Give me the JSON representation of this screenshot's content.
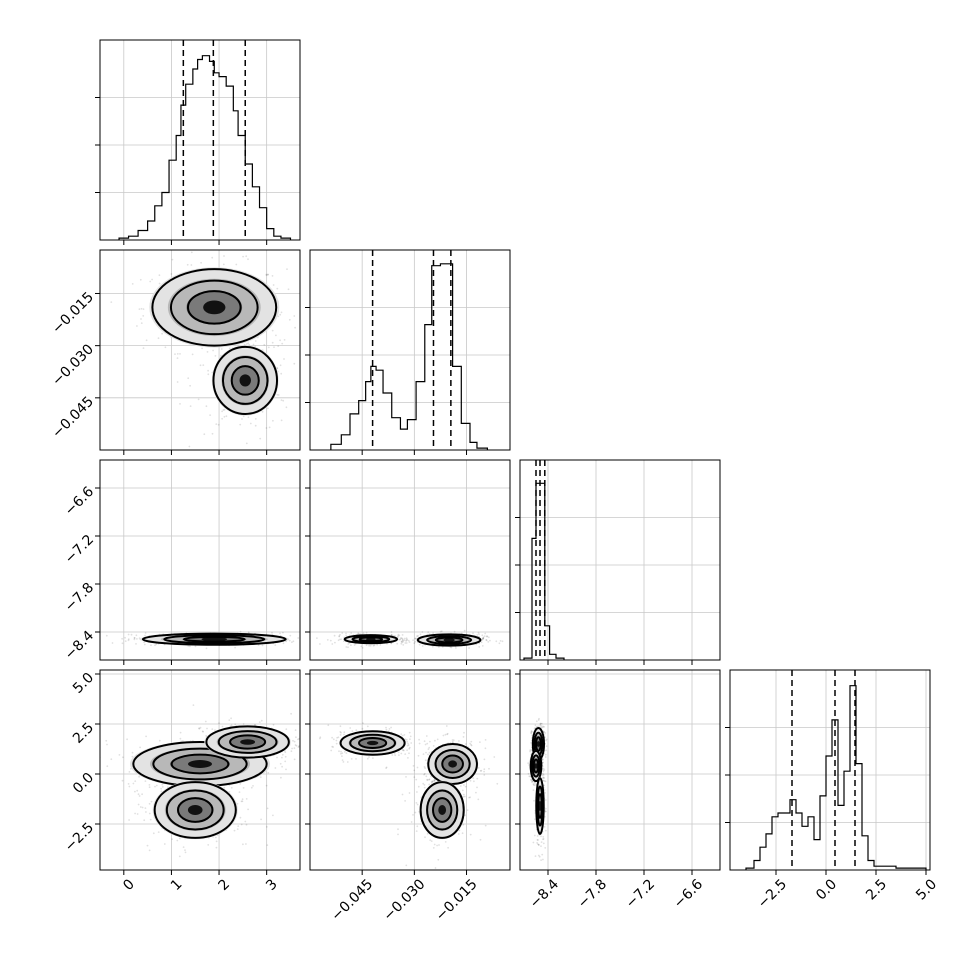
{
  "chart_data": {
    "type": "corner",
    "parameters": [
      {
        "range": [
          -0.5,
          3.7
        ],
        "ticks": [
          0,
          1,
          2,
          3
        ],
        "tick_labels": [
          "0",
          "1",
          "2",
          "3"
        ]
      },
      {
        "range": [
          -0.06,
          -0.0025
        ],
        "ticks": [
          -0.045,
          -0.03,
          -0.015
        ],
        "tick_labels": [
          "−0.045",
          "−0.030",
          "−0.015"
        ]
      },
      {
        "range": [
          -8.75,
          -6.25
        ],
        "ticks": [
          -8.4,
          -7.8,
          -7.2,
          -6.6
        ],
        "tick_labels": [
          "−8.4",
          "−7.8",
          "−7.2",
          "−6.6"
        ]
      },
      {
        "range": [
          -4.8,
          5.2
        ],
        "ticks": [
          -2.5,
          0.0,
          2.5,
          5.0
        ],
        "tick_labels": [
          "−2.5",
          "0.0",
          "2.5",
          "5.0"
        ]
      }
    ],
    "histograms": [
      {
        "param": 0,
        "max": 1.0,
        "quantiles": [
          1.25,
          1.88,
          2.55
        ],
        "bin_edges": [
          -0.1,
          0.1,
          0.3,
          0.5,
          0.65,
          0.8,
          0.95,
          1.1,
          1.2,
          1.3,
          1.45,
          1.55,
          1.65,
          1.8,
          1.9,
          2.0,
          2.15,
          2.3,
          2.4,
          2.55,
          2.7,
          2.85,
          3.0,
          3.15,
          3.3,
          3.5
        ],
        "counts": [
          0.01,
          0.02,
          0.05,
          0.1,
          0.18,
          0.25,
          0.42,
          0.55,
          0.71,
          0.82,
          0.9,
          0.95,
          0.97,
          0.94,
          0.88,
          0.86,
          0.81,
          0.68,
          0.55,
          0.4,
          0.28,
          0.17,
          0.06,
          0.02,
          0.01
        ]
      },
      {
        "param": 1,
        "max": 1.0,
        "quantiles": [
          -0.042,
          -0.0245,
          -0.0195
        ],
        "bin_edges": [
          -0.054,
          -0.051,
          -0.0485,
          -0.046,
          -0.044,
          -0.0425,
          -0.041,
          -0.039,
          -0.0365,
          -0.034,
          -0.032,
          -0.0295,
          -0.027,
          -0.025,
          -0.0225,
          -0.019,
          -0.0165,
          -0.014,
          -0.012,
          -0.009
        ],
        "counts": [
          0.03,
          0.08,
          0.19,
          0.26,
          0.36,
          0.44,
          0.42,
          0.3,
          0.17,
          0.11,
          0.16,
          0.36,
          0.66,
          0.97,
          0.98,
          0.44,
          0.14,
          0.04,
          0.01
        ]
      },
      {
        "param": 2,
        "max": 1.0,
        "quantiles": [
          -8.55,
          -8.5,
          -8.44
        ],
        "bin_edges": [
          -8.7,
          -8.6,
          -8.55,
          -8.5,
          -8.44,
          -8.38,
          -8.3,
          -8.2
        ],
        "counts": [
          0.01,
          0.64,
          0.93,
          0.93,
          0.18,
          0.03,
          0.01
        ]
      },
      {
        "param": 3,
        "max": 1.0,
        "quantiles": [
          -1.7,
          0.45,
          1.45
        ],
        "bin_edges": [
          -4.0,
          -3.6,
          -3.3,
          -3.0,
          -2.7,
          -2.4,
          -2.1,
          -1.8,
          -1.5,
          -1.2,
          -0.9,
          -0.6,
          -0.3,
          0.0,
          0.3,
          0.6,
          0.9,
          1.2,
          1.5,
          1.8,
          2.1,
          2.4,
          3.5,
          5.0
        ],
        "counts": [
          0.01,
          0.05,
          0.12,
          0.19,
          0.28,
          0.3,
          0.3,
          0.37,
          0.3,
          0.23,
          0.28,
          0.16,
          0.39,
          0.6,
          0.79,
          0.34,
          0.52,
          0.97,
          0.56,
          0.18,
          0.05,
          0.02,
          0.01
        ]
      }
    ],
    "pairs": [
      {
        "x_param": 0,
        "y_param": 1,
        "modes": [
          {
            "cx": 1.9,
            "cy": -0.019,
            "sx": 0.65,
            "sy": 0.0055,
            "weight": 1.0
          },
          {
            "cx": 2.55,
            "cy": -0.04,
            "sx": 0.45,
            "sy": 0.0065,
            "weight": 0.55
          }
        ]
      },
      {
        "x_param": 0,
        "y_param": 2,
        "modes": [
          {
            "cx": 1.9,
            "cy": -8.49,
            "sx": 0.75,
            "sy": 0.035,
            "weight": 1.0
          }
        ]
      },
      {
        "x_param": 1,
        "y_param": 2,
        "modes": [
          {
            "cx": -0.0425,
            "cy": -8.49,
            "sx": 0.0045,
            "sy": 0.03,
            "weight": 0.7
          },
          {
            "cx": -0.02,
            "cy": -8.5,
            "sx": 0.0045,
            "sy": 0.035,
            "weight": 1.0
          }
        ]
      },
      {
        "x_param": 0,
        "y_param": 3,
        "modes": [
          {
            "cx": 1.6,
            "cy": 0.5,
            "sx": 0.7,
            "sy": 0.55,
            "weight": 1.0
          },
          {
            "cx": 2.6,
            "cy": 1.6,
            "sx": 0.5,
            "sy": 0.45,
            "weight": 0.75
          },
          {
            "cx": 1.5,
            "cy": -1.8,
            "sx": 0.55,
            "sy": 0.9,
            "weight": 0.6
          }
        ]
      },
      {
        "x_param": 1,
        "y_param": 3,
        "modes": [
          {
            "cx": -0.042,
            "cy": 1.55,
            "sx": 0.0055,
            "sy": 0.35,
            "weight": 0.7
          },
          {
            "cx": -0.019,
            "cy": 0.5,
            "sx": 0.0035,
            "sy": 0.5,
            "weight": 1.0
          },
          {
            "cx": -0.022,
            "cy": -1.8,
            "sx": 0.004,
            "sy": 0.9,
            "weight": 0.6
          }
        ]
      },
      {
        "x_param": 2,
        "y_param": 3,
        "modes": [
          {
            "cx": -8.52,
            "cy": 1.5,
            "sx": 0.035,
            "sy": 0.4,
            "weight": 1.0
          },
          {
            "cx": -8.55,
            "cy": 0.4,
            "sx": 0.035,
            "sy": 0.4,
            "weight": 0.9
          },
          {
            "cx": -8.5,
            "cy": -1.6,
            "sx": 0.03,
            "sy": 0.9,
            "weight": 0.6
          }
        ]
      }
    ],
    "grid": true,
    "quantile_lines": "dashed"
  }
}
